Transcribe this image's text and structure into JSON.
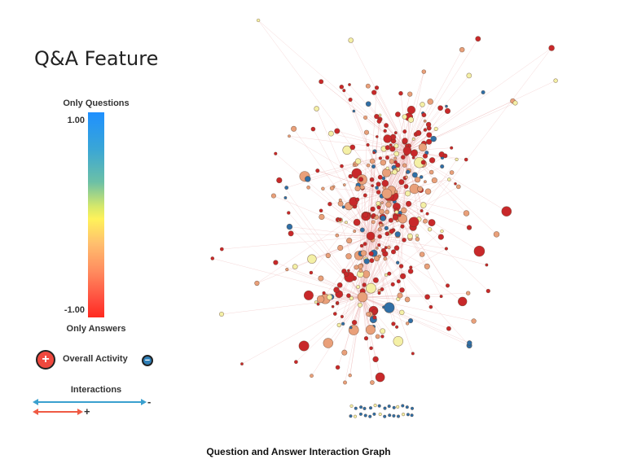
{
  "title": "Q&A Feature",
  "scale": {
    "top_label": "Only Questions",
    "bottom_label": "Only Answers",
    "max": "1.00",
    "min": "-1.00",
    "colors": [
      "#1e90ff",
      "#fff25a",
      "#ff2a1f"
    ]
  },
  "legend": {
    "activity_label": "Overall Activity",
    "plus_symbol": "+",
    "minus_symbol": "−",
    "interactions_label": "Interactions",
    "interactions_minus": "-",
    "interactions_plus": "+",
    "minus_color": "#3aa0cf",
    "plus_color": "#ef5a44"
  },
  "graph": {
    "node_colors": {
      "answer": "#c8282a",
      "mixed": "#e9a07a",
      "neutral": "#f4f0a6",
      "question": "#2f6fa6",
      "edge": "#e8a8a8"
    }
  },
  "caption": "Question and Answer Interaction Graph"
}
